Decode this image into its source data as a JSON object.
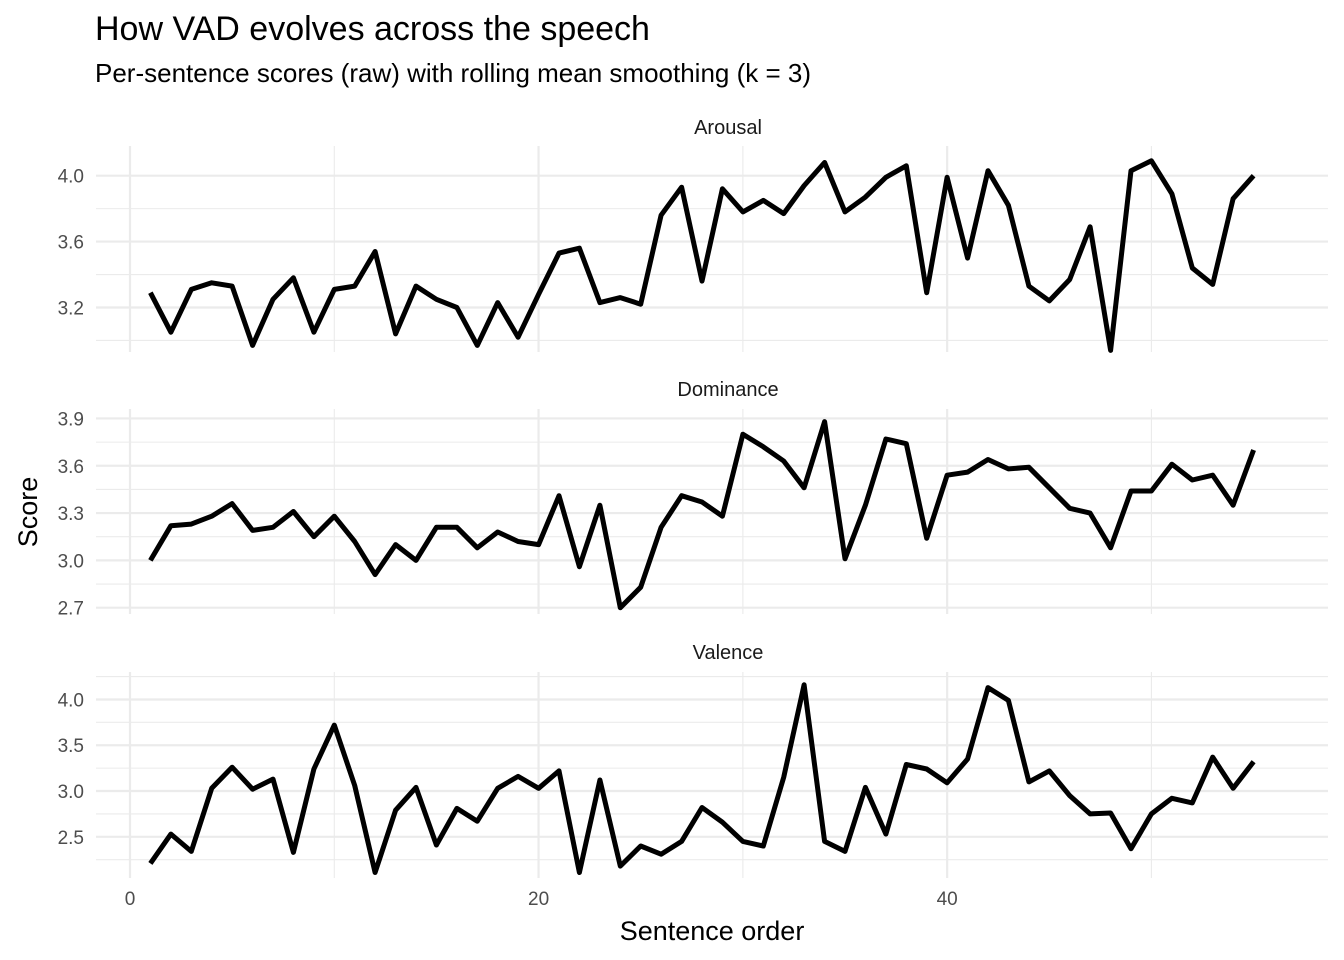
{
  "chart_data": {
    "type": "line",
    "title": "How VAD evolves across the speech",
    "subtitle": "Per-sentence scores (raw) with rolling mean smoothing (k = 3)",
    "xlabel": "Sentence order",
    "ylabel": "Score",
    "x_ticks": [
      0,
      20,
      40
    ],
    "xlim": [
      0,
      56
    ],
    "grid": true,
    "legend": "none",
    "line_color": "#000000",
    "panels": [
      {
        "name": "Arousal",
        "y_ticks": [
          "3.2",
          "3.6",
          "4.0"
        ],
        "ylim": [
          2.93,
          4.18
        ],
        "x": [
          1,
          2,
          3,
          4,
          5,
          6,
          7,
          8,
          9,
          10,
          11,
          12,
          13,
          14,
          15,
          16,
          17,
          18,
          19,
          20,
          21,
          22,
          23,
          24,
          25,
          26,
          27,
          28,
          29,
          30,
          31,
          32,
          33,
          34,
          35,
          36,
          37,
          38,
          39,
          40,
          41,
          42,
          43,
          44,
          45,
          46,
          47,
          48,
          49,
          50,
          51,
          52,
          53,
          54,
          55
        ],
        "values": [
          3.29,
          3.05,
          3.31,
          3.35,
          3.33,
          2.97,
          3.25,
          3.38,
          3.05,
          3.31,
          3.33,
          3.54,
          3.04,
          3.33,
          3.25,
          3.2,
          2.97,
          3.23,
          3.02,
          3.28,
          3.53,
          3.56,
          3.23,
          3.26,
          3.22,
          3.76,
          3.93,
          3.36,
          3.92,
          3.78,
          3.85,
          3.77,
          3.94,
          4.08,
          3.78,
          3.87,
          3.99,
          4.06,
          3.29,
          3.99,
          3.5,
          4.03,
          3.82,
          3.33,
          3.24,
          3.37,
          3.69,
          2.94,
          4.03,
          4.09,
          3.89,
          3.44,
          3.34,
          3.86,
          4.0
        ]
      },
      {
        "name": "Dominance",
        "y_ticks": [
          "2.7",
          "3.0",
          "3.3",
          "3.6",
          "3.9"
        ],
        "ylim": [
          2.66,
          3.96
        ],
        "x": [
          1,
          2,
          3,
          4,
          5,
          6,
          7,
          8,
          9,
          10,
          11,
          12,
          13,
          14,
          15,
          16,
          17,
          18,
          19,
          20,
          21,
          22,
          23,
          24,
          25,
          26,
          27,
          28,
          29,
          30,
          31,
          32,
          33,
          34,
          35,
          36,
          37,
          38,
          39,
          40,
          41,
          42,
          43,
          44,
          45,
          46,
          47,
          48,
          49,
          50,
          51,
          52,
          53,
          54,
          55
        ],
        "values": [
          3.0,
          3.22,
          3.23,
          3.28,
          3.36,
          3.19,
          3.21,
          3.31,
          3.15,
          3.28,
          3.12,
          2.91,
          3.1,
          3.0,
          3.21,
          3.21,
          3.08,
          3.18,
          3.12,
          3.1,
          3.41,
          2.96,
          3.35,
          2.7,
          2.83,
          3.21,
          3.41,
          3.37,
          3.28,
          3.8,
          3.72,
          3.63,
          3.46,
          3.88,
          3.01,
          3.35,
          3.77,
          3.74,
          3.14,
          3.54,
          3.56,
          3.64,
          3.58,
          3.59,
          3.46,
          3.33,
          3.3,
          3.08,
          3.44,
          3.44,
          3.61,
          3.51,
          3.54,
          3.35,
          3.7
        ]
      },
      {
        "name": "Valence",
        "y_ticks": [
          "2.5",
          "3.0",
          "3.5",
          "4.0"
        ],
        "ylim": [
          2.05,
          4.3
        ],
        "x": [
          1,
          2,
          3,
          4,
          5,
          6,
          7,
          8,
          9,
          10,
          11,
          12,
          13,
          14,
          15,
          16,
          17,
          18,
          19,
          20,
          21,
          22,
          23,
          24,
          25,
          26,
          27,
          28,
          29,
          30,
          31,
          32,
          33,
          34,
          35,
          36,
          37,
          38,
          39,
          40,
          41,
          42,
          43,
          44,
          45,
          46,
          47,
          48,
          49,
          50,
          51,
          52,
          53,
          54,
          55
        ],
        "values": [
          2.21,
          2.53,
          2.34,
          3.03,
          3.26,
          3.02,
          3.13,
          2.33,
          3.24,
          3.72,
          3.06,
          2.11,
          2.79,
          3.04,
          2.41,
          2.81,
          2.67,
          3.03,
          3.16,
          3.03,
          3.22,
          2.11,
          3.12,
          2.18,
          2.4,
          2.31,
          2.45,
          2.82,
          2.66,
          2.45,
          2.4,
          3.15,
          4.16,
          2.45,
          2.34,
          3.04,
          2.53,
          3.29,
          3.24,
          3.09,
          3.35,
          4.13,
          3.99,
          3.1,
          3.22,
          2.95,
          2.75,
          2.76,
          2.37,
          2.75,
          2.92,
          2.87,
          3.37,
          3.03,
          3.32
        ]
      }
    ]
  }
}
